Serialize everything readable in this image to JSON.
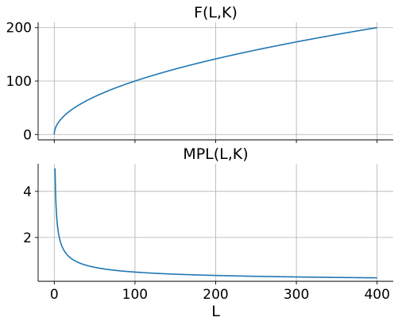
{
  "chart_data": [
    {
      "type": "line",
      "title": "F(L,K)",
      "xlabel": "",
      "ylabel": "",
      "xlim": [
        -20,
        420
      ],
      "ylim": [
        -10,
        210
      ],
      "xticks": [
        0,
        100,
        200,
        300,
        400
      ],
      "yticks": [
        0,
        100,
        200
      ],
      "ytick_labels": [
        "0",
        "100",
        "200"
      ],
      "grid": true,
      "series": [
        {
          "color": "#1f77b4",
          "function": "F",
          "x_range": [
            0,
            400
          ],
          "x": [
            0,
            1,
            5,
            10,
            25,
            50,
            100,
            150,
            200,
            250,
            300,
            350,
            400
          ],
          "y": [
            0,
            10,
            22.4,
            31.6,
            50,
            70.7,
            100,
            122.5,
            141.4,
            158.1,
            173.2,
            187.1,
            200
          ]
        }
      ]
    },
    {
      "type": "line",
      "title": "MPL(L,K)",
      "xlabel": "L",
      "ylabel": "",
      "xlim": [
        -20,
        420
      ],
      "ylim": [
        0.1,
        5.2
      ],
      "xticks": [
        0,
        100,
        200,
        300,
        400
      ],
      "xtick_labels": [
        "0",
        "100",
        "200",
        "300",
        "400"
      ],
      "yticks": [
        2,
        4
      ],
      "ytick_labels": [
        "2",
        "4"
      ],
      "grid": true,
      "series": [
        {
          "color": "#1f77b4",
          "function": "MPL",
          "x_range": [
            1,
            400
          ],
          "x": [
            1,
            2,
            5,
            10,
            25,
            50,
            100,
            200,
            300,
            400
          ],
          "y": [
            5,
            3.54,
            2.24,
            1.58,
            1.0,
            0.71,
            0.5,
            0.35,
            0.29,
            0.25
          ]
        }
      ]
    }
  ]
}
